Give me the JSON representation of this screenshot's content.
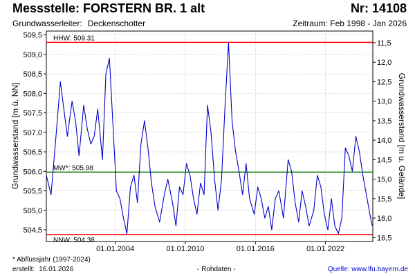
{
  "header": {
    "title": "Messstelle: FORSTERN BR. 1 alt",
    "number": "Nr: 14108",
    "aquifer_label": "Grundwasserleiter:",
    "aquifer_value": "Deckenschotter",
    "period": "Zeitraum: Feb 1998 - Jan 2026"
  },
  "footer": {
    "note": "* Abflussjahr (1997-2024)",
    "created_label": "erstellt:",
    "created_value": "16.01.2026",
    "raw_data": "- Rohdaten -",
    "source_label": "Quelle:",
    "source_url": "www.lfu.bayern.de"
  },
  "colors": {
    "series": "#0000cc",
    "hhw": "#ff0000",
    "nnw": "#ff0000",
    "mw": "#008000",
    "grid": "#bbbbbb"
  },
  "chart_data": {
    "type": "line",
    "ylabel": "Grundwasserstand [m ü. NN]",
    "ylabel_right": "Grundwasserstand [m u. Gelände]",
    "ylim": [
      504.2,
      509.6
    ],
    "yticks": [
      "504,5",
      "505,0",
      "505,5",
      "506,0",
      "506,5",
      "507,0",
      "507,5",
      "508,0",
      "508,5",
      "509,0",
      "509,5"
    ],
    "right_ylim": [
      16.6,
      11.2
    ],
    "right_yticks": [
      "11,5",
      "12,0",
      "12,5",
      "13,0",
      "13,5",
      "14,0",
      "14,5",
      "15,0",
      "15,5",
      "16,0",
      "16,5"
    ],
    "xlim": [
      1998.1,
      2026.05
    ],
    "xticks": [
      {
        "x": 2004.0,
        "label": "01.01.2004"
      },
      {
        "x": 2010.0,
        "label": "01.01.2010"
      },
      {
        "x": 2016.0,
        "label": "01.01.2016"
      },
      {
        "x": 2022.0,
        "label": "01.01.2022"
      }
    ],
    "reference_lines": [
      {
        "key": "hhw",
        "label": "HHW: 509.31",
        "y": 509.31
      },
      {
        "key": "mw",
        "label": "MW*: 505.98",
        "y": 505.98
      },
      {
        "key": "nnw",
        "label": "NNW: 504.38",
        "y": 504.38
      }
    ],
    "series": [
      {
        "x": [
          1998.1,
          1998.5,
          1998.9,
          1999.3,
          1999.6,
          1999.9,
          2000.3,
          2000.6,
          2000.9,
          2001.3,
          2001.6,
          2001.9,
          2002.2,
          2002.5,
          2002.9,
          2003.2,
          2003.5,
          2003.8,
          2004.1,
          2004.4,
          2004.7,
          2005.0,
          2005.3,
          2005.6,
          2005.9,
          2006.2,
          2006.5,
          2006.8,
          2007.1,
          2007.4,
          2007.8,
          2008.2,
          2008.5,
          2008.9,
          2009.2,
          2009.5,
          2009.8,
          2010.1,
          2010.4,
          2010.7,
          2011.0,
          2011.3,
          2011.6,
          2011.9,
          2012.2,
          2012.5,
          2012.8,
          2013.1,
          2013.4,
          2013.7,
          2014.0,
          2014.3,
          2014.6,
          2014.9,
          2015.2,
          2015.5,
          2015.9,
          2016.2,
          2016.5,
          2016.8,
          2017.1,
          2017.4,
          2017.7,
          2018.0,
          2018.4,
          2018.8,
          2019.1,
          2019.4,
          2019.7,
          2020.0,
          2020.3,
          2020.6,
          2021.0,
          2021.3,
          2021.6,
          2021.9,
          2022.2,
          2022.5,
          2022.8,
          2023.1,
          2023.4,
          2023.7,
          2024.0,
          2024.3,
          2024.6,
          2024.9,
          2025.2,
          2025.5,
          2025.8,
          2026.0
        ],
        "y": [
          505.9,
          505.4,
          506.8,
          508.3,
          507.6,
          506.9,
          507.8,
          507.3,
          506.4,
          507.7,
          507.1,
          506.7,
          506.9,
          507.6,
          506.3,
          508.5,
          508.9,
          507.2,
          505.5,
          505.3,
          504.8,
          504.4,
          505.6,
          505.9,
          505.2,
          506.7,
          507.3,
          506.6,
          505.7,
          505.1,
          504.7,
          505.4,
          505.8,
          505.2,
          504.6,
          505.6,
          505.4,
          506.2,
          505.9,
          505.3,
          504.9,
          505.7,
          505.4,
          507.7,
          507.0,
          505.8,
          505.0,
          505.8,
          507.7,
          509.3,
          507.3,
          506.5,
          506.0,
          505.4,
          506.2,
          505.3,
          504.9,
          505.6,
          505.3,
          504.8,
          505.1,
          504.5,
          505.3,
          505.5,
          504.8,
          506.3,
          506.0,
          505.2,
          504.7,
          505.5,
          505.1,
          504.6,
          505.0,
          505.9,
          505.6,
          504.9,
          504.5,
          505.3,
          504.6,
          504.4,
          504.8,
          506.6,
          506.4,
          506.0,
          506.9,
          506.5,
          505.9,
          505.4,
          504.9,
          504.6
        ]
      }
    ]
  }
}
